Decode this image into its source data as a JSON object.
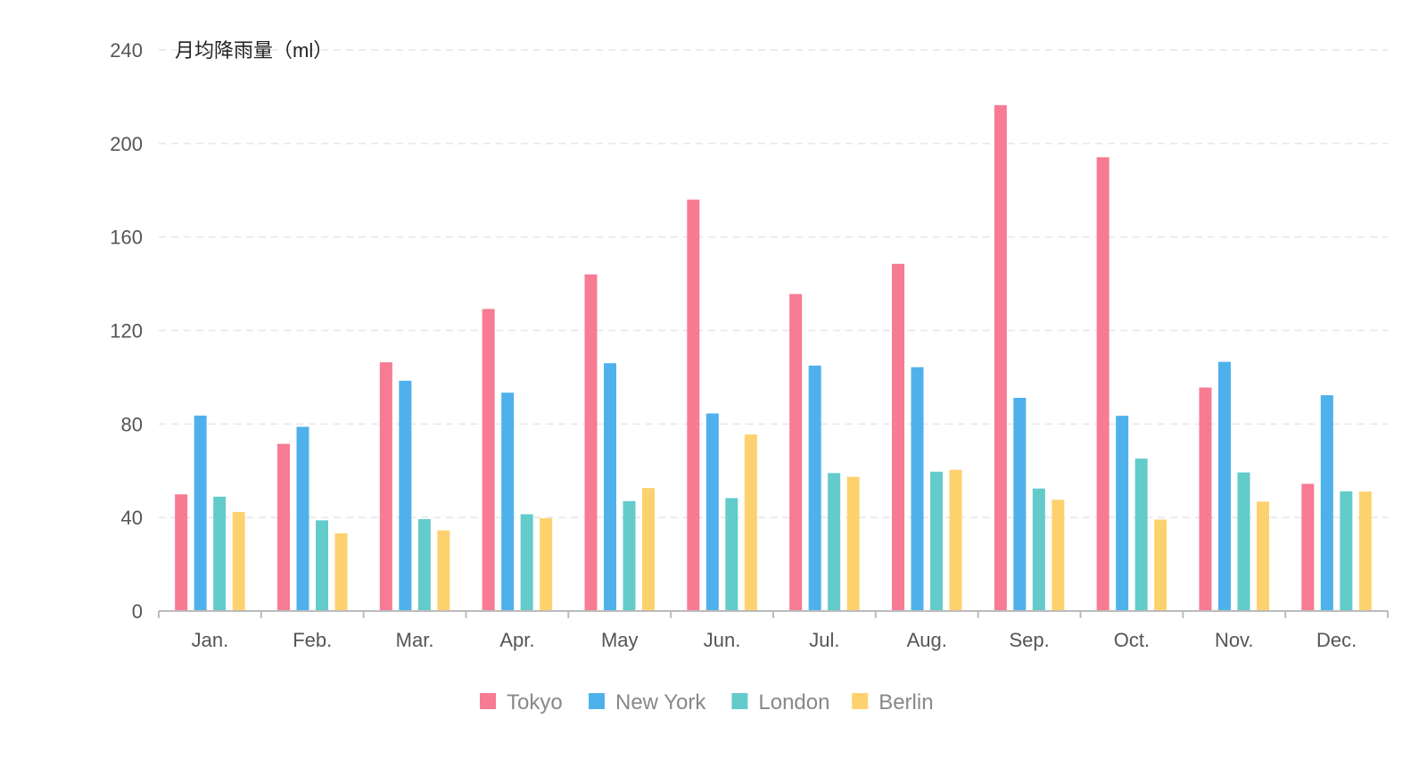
{
  "chart_data": {
    "type": "bar",
    "title": "",
    "ylabel": "月均降雨量（ml）",
    "xlabel": "",
    "categories": [
      "Jan.",
      "Feb.",
      "Mar.",
      "Apr.",
      "May",
      "Jun.",
      "Jul.",
      "Aug.",
      "Sep.",
      "Oct.",
      "Nov.",
      "Dec."
    ],
    "ylim": [
      0,
      240
    ],
    "yticks": [
      0,
      40,
      80,
      120,
      160,
      200,
      240
    ],
    "grid": true,
    "legend_position": "bottom",
    "series": [
      {
        "name": "Tokyo",
        "color": "#f77b93",
        "values": [
          49.9,
          71.5,
          106.4,
          129.2,
          144.0,
          176.0,
          135.6,
          148.5,
          216.4,
          194.1,
          95.6,
          54.4
        ]
      },
      {
        "name": "New York",
        "color": "#4fb1ec",
        "values": [
          83.6,
          78.8,
          98.5,
          93.4,
          106.0,
          84.5,
          105.0,
          104.3,
          91.2,
          83.5,
          106.6,
          92.3
        ]
      },
      {
        "name": "London",
        "color": "#64cbcb",
        "values": [
          48.9,
          38.8,
          39.3,
          41.4,
          47.0,
          48.3,
          59.0,
          59.6,
          52.4,
          65.2,
          59.3,
          51.2
        ]
      },
      {
        "name": "Berlin",
        "color": "#fdd26e",
        "values": [
          42.4,
          33.2,
          34.5,
          39.7,
          52.6,
          75.5,
          57.4,
          60.4,
          47.6,
          39.1,
          46.8,
          51.1
        ]
      }
    ]
  }
}
